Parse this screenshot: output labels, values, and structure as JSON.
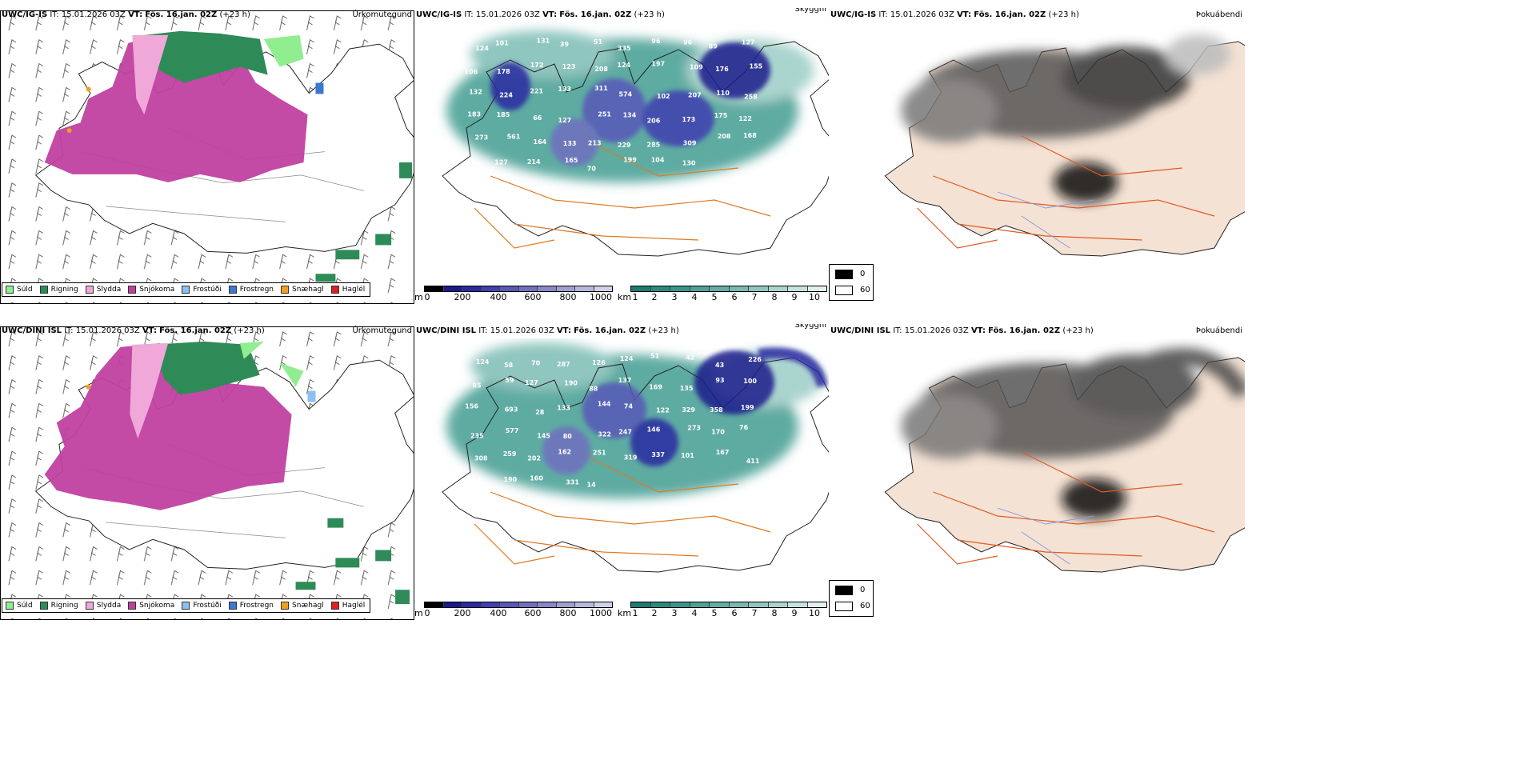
{
  "rows": [
    {
      "model": "UWC/IG-IS",
      "it_label": "IT:",
      "it_value": "15.01.2026 03Z",
      "vt_label": "VT:",
      "vt_value": "Fös. 16.jan. 02Z",
      "lead": "(+23 h)"
    },
    {
      "model": "UWC/DINI ISL",
      "it_label": "IT:",
      "it_value": "15.01.2026 03Z",
      "vt_label": "VT:",
      "vt_value": "Fös. 16.jan. 02Z",
      "lead": "(+23 h)"
    }
  ],
  "panels": {
    "precip_type_title": "Úrkomutegund",
    "visibility_title": "Skyggni",
    "fog_title": "Þokuábendi"
  },
  "precip_legend": [
    {
      "label": "Súld",
      "color": "#90ee90"
    },
    {
      "label": "Rigning",
      "color": "#2e8b57"
    },
    {
      "label": "Slydda",
      "color": "#f0a8d8"
    },
    {
      "label": "Snjókoma",
      "color": "#c040a0"
    },
    {
      "label": "Frostúði",
      "color": "#8cc0f0"
    },
    {
      "label": "Frostregn",
      "color": "#3c78d0"
    },
    {
      "label": "Snæhagl",
      "color": "#f0a020"
    },
    {
      "label": "Haglél",
      "color": "#e02020"
    }
  ],
  "cloudbase_bar": {
    "unit": "m",
    "ticks": [
      "0",
      "200",
      "400",
      "600",
      "800",
      "1000"
    ],
    "colors": [
      "#000000",
      "#1a1a8c",
      "#2a2aa0",
      "#4040b0",
      "#5858b8",
      "#7070c0",
      "#8888c8",
      "#a0a0d0",
      "#b8b8dc",
      "#d0d0e8"
    ]
  },
  "visibility_bar": {
    "unit": "km",
    "ticks": [
      "1",
      "2",
      "3",
      "4",
      "5",
      "6",
      "7",
      "8",
      "9",
      "10"
    ],
    "colors": [
      "#1c7c74",
      "#2a8a80",
      "#3a968c",
      "#4ca298",
      "#60aea4",
      "#78bab2",
      "#90c6c0",
      "#aad4ce",
      "#c6e2de",
      "#e2f0ee"
    ]
  },
  "fog_key": [
    {
      "label": "0",
      "color": "#000000"
    },
    {
      "label": "60",
      "color": "#ffffff"
    }
  ],
  "visibility_numbers": [
    [
      "124",
      "101",
      "131",
      "39",
      "51",
      "335",
      "96",
      "96",
      "89",
      "127",
      "106",
      "178",
      "172",
      "123",
      "208",
      "124",
      "197",
      "109",
      "176",
      "155",
      "132",
      "224",
      "221",
      "133",
      "311",
      "574",
      "102",
      "207",
      "110",
      "258",
      "183",
      "185",
      "66",
      "127",
      "251",
      "134",
      "206",
      "173",
      "175",
      "122",
      "273",
      "561",
      "164",
      "133",
      "213",
      "229",
      "285",
      "309",
      "208",
      "168",
      "123",
      "127",
      "214",
      "165",
      "70",
      "199",
      "104",
      "130"
    ],
    [
      "124",
      "58",
      "70",
      "287",
      "126",
      "124",
      "51",
      "42",
      "43",
      "226",
      "85",
      "59",
      "127",
      "190",
      "88",
      "137",
      "169",
      "135",
      "93",
      "100",
      "156",
      "693",
      "28",
      "133",
      "144",
      "74",
      "122",
      "329",
      "358",
      "199",
      "235",
      "577",
      "145",
      "80",
      "322",
      "247",
      "146",
      "273",
      "170",
      "76",
      "308",
      "259",
      "202",
      "162",
      "251",
      "319",
      "337",
      "101",
      "167",
      "411",
      "113",
      "190",
      "160",
      "331",
      "14"
    ]
  ]
}
